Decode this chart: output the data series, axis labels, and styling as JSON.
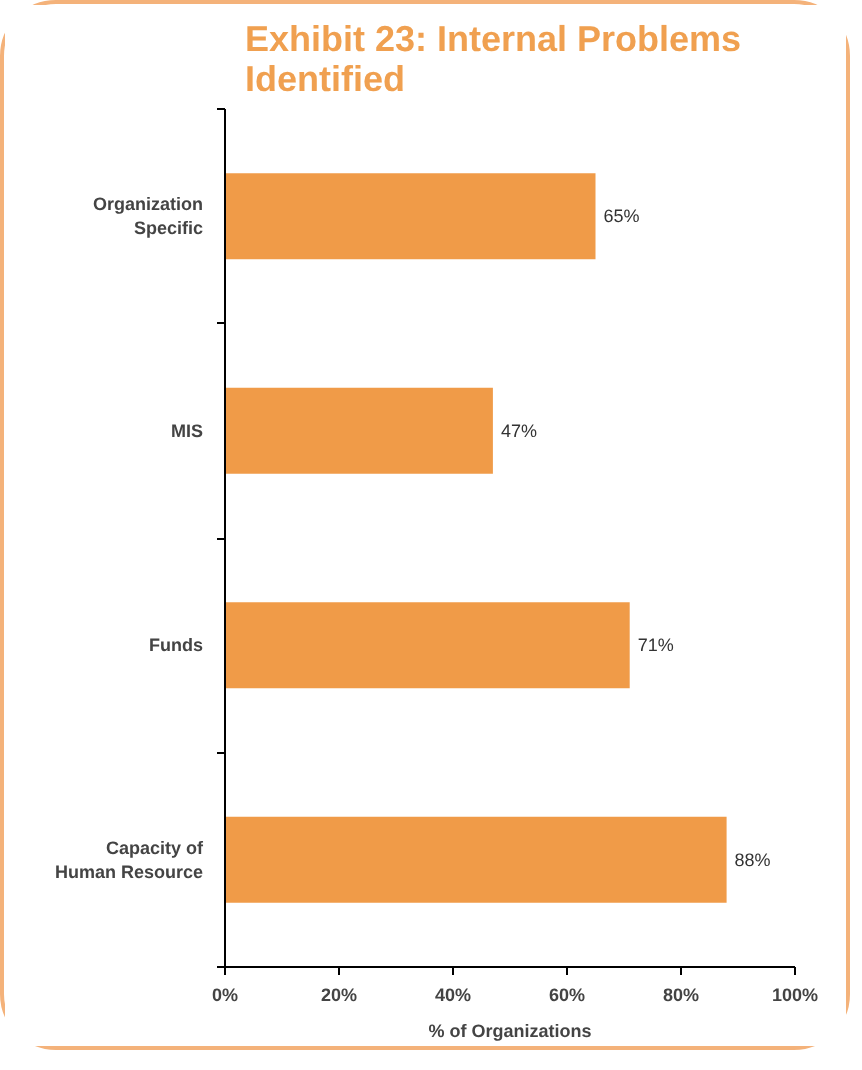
{
  "chart_data": {
    "type": "bar",
    "orientation": "horizontal",
    "title": "Exhibit 23: Internal Problems Identified",
    "xlabel": "% of Organizations",
    "categories": [
      "Organization Specific",
      "MIS",
      "Funds",
      "Capacity of Human Resource"
    ],
    "values": [
      65,
      47,
      71,
      88
    ],
    "color": "#f09b48",
    "value_labels": [
      "65%",
      "47%",
      "71%",
      "88%"
    ],
    "xlim": [
      0,
      100
    ],
    "xticks": [
      {
        "value": 0,
        "label": "0%"
      },
      {
        "value": 20,
        "label": "20%"
      },
      {
        "value": 40,
        "label": "40%"
      },
      {
        "value": 60,
        "label": "60%"
      },
      {
        "value": 80,
        "label": "80%"
      },
      {
        "value": 100,
        "label": "100%"
      }
    ],
    "grid": false
  }
}
